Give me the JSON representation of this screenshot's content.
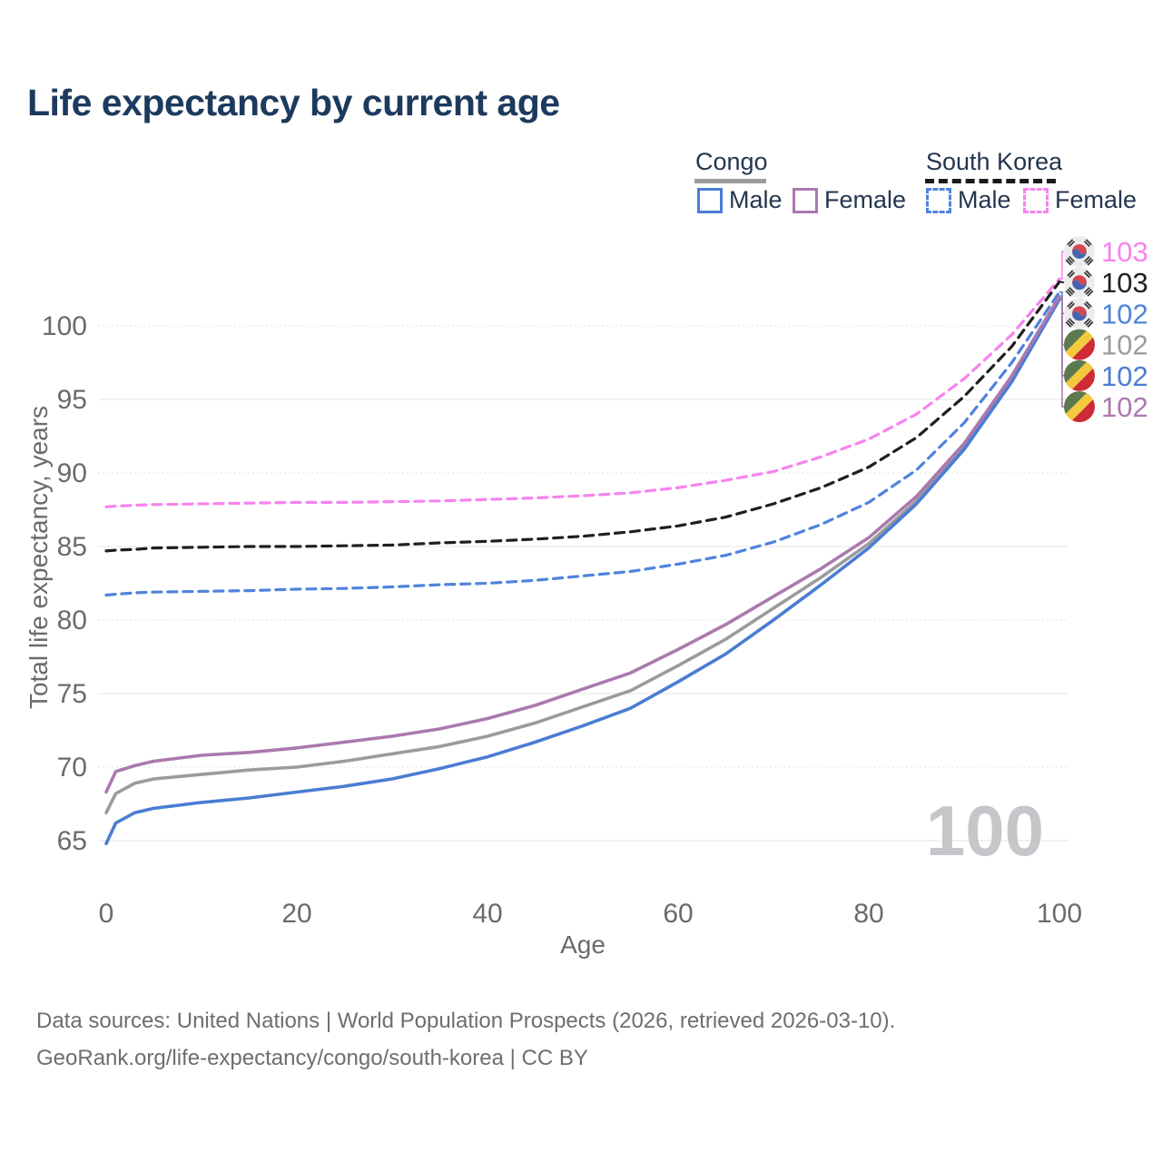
{
  "title": "Life expectancy by current age",
  "watermark": "100",
  "legend": {
    "groups": [
      {
        "name": "Congo",
        "line_style": "solid",
        "line_color": "#9b9b9b",
        "items": [
          {
            "label": "Male",
            "color": "#4a7dd3",
            "dashed": false
          },
          {
            "label": "Female",
            "color": "#ab79ae",
            "dashed": false
          }
        ]
      },
      {
        "name": "South Korea",
        "line_style": "dashed",
        "line_color": "#1a1a1a",
        "items": [
          {
            "label": "Male",
            "color": "#4f83dd",
            "dashed": true
          },
          {
            "label": "Female",
            "color": "#f783ee",
            "dashed": true
          }
        ]
      }
    ]
  },
  "footer": {
    "line1": "Data sources: United Nations | World Population Prospects (2026, retrieved 2026-03-10).",
    "line2": "GeoRank.org/life-expectancy/congo/south-korea | CC BY"
  },
  "chart_data": {
    "type": "line",
    "title": "Life expectancy by current age",
    "xlabel": "Age",
    "ylabel": "Total life expectancy, years",
    "xlim": [
      0,
      100
    ],
    "ylim": [
      63,
      104
    ],
    "xticks": [
      0,
      20,
      40,
      60,
      80,
      100
    ],
    "yticks": [
      65,
      70,
      75,
      80,
      85,
      90,
      95,
      100
    ],
    "grid": "horizontal-only",
    "legend_position": "top-right",
    "x": [
      0,
      1,
      3,
      5,
      10,
      15,
      20,
      25,
      30,
      35,
      40,
      45,
      50,
      55,
      60,
      65,
      70,
      75,
      80,
      85,
      90,
      95,
      100
    ],
    "series": [
      {
        "id": "sk_female",
        "name": "South Korea Female",
        "country": "South Korea",
        "sex": "Female",
        "color": "#f783ee",
        "dashed": true,
        "flag": "kr",
        "end_label": "103",
        "values": [
          87.7,
          87.75,
          87.8,
          87.85,
          87.9,
          87.95,
          88.0,
          88.0,
          88.05,
          88.1,
          88.2,
          88.3,
          88.45,
          88.65,
          89.0,
          89.5,
          90.1,
          91.1,
          92.3,
          94.0,
          96.4,
          99.4,
          103.2
        ]
      },
      {
        "id": "sk_total",
        "name": "South Korea Both sexes",
        "country": "South Korea",
        "sex": "Both",
        "color": "#1f1f1f",
        "dashed": true,
        "flag": "kr",
        "end_label": "103",
        "values": [
          84.7,
          84.75,
          84.8,
          84.9,
          84.95,
          85.0,
          85.0,
          85.05,
          85.1,
          85.25,
          85.35,
          85.5,
          85.7,
          86.0,
          86.4,
          87.0,
          87.9,
          89.0,
          90.4,
          92.4,
          95.2,
          98.6,
          103.0
        ]
      },
      {
        "id": "sk_male",
        "name": "South Korea Male",
        "country": "South Korea",
        "sex": "Male",
        "color": "#4f83dd",
        "dashed": true,
        "flag": "kr",
        "end_label": "102",
        "values": [
          81.7,
          81.75,
          81.85,
          81.9,
          81.95,
          82.0,
          82.1,
          82.15,
          82.25,
          82.4,
          82.5,
          82.7,
          83.0,
          83.3,
          83.8,
          84.4,
          85.3,
          86.5,
          88.0,
          90.2,
          93.4,
          97.5,
          102.3
        ]
      },
      {
        "id": "congo_total",
        "name": "Congo Both sexes",
        "country": "Congo",
        "sex": "Both",
        "color": "#9b9b9b",
        "dashed": false,
        "flag": "cg",
        "end_label": "102",
        "values": [
          66.9,
          68.2,
          68.9,
          69.2,
          69.5,
          69.8,
          70.0,
          70.4,
          70.9,
          71.4,
          72.1,
          73.0,
          74.1,
          75.2,
          76.9,
          78.7,
          80.8,
          82.9,
          85.2,
          88.1,
          91.8,
          96.4,
          101.9
        ]
      },
      {
        "id": "congo_male",
        "name": "Congo Male",
        "country": "Congo",
        "sex": "Male",
        "color": "#4a7dd3",
        "dashed": false,
        "flag": "cg",
        "end_label": "102",
        "values": [
          64.8,
          66.2,
          66.9,
          67.2,
          67.6,
          67.9,
          68.3,
          68.7,
          69.2,
          69.9,
          70.7,
          71.7,
          72.8,
          74.0,
          75.8,
          77.7,
          80.0,
          82.4,
          84.9,
          87.9,
          91.6,
          96.2,
          101.8
        ]
      },
      {
        "id": "congo_female",
        "name": "Congo Female",
        "country": "Congo",
        "sex": "Female",
        "color": "#ab79ae",
        "dashed": false,
        "flag": "cg",
        "end_label": "102",
        "values": [
          68.3,
          69.7,
          70.1,
          70.4,
          70.8,
          71.0,
          71.3,
          71.7,
          72.1,
          72.6,
          73.3,
          74.2,
          75.3,
          76.4,
          78.0,
          79.7,
          81.6,
          83.5,
          85.6,
          88.4,
          92.0,
          96.6,
          102.0
        ]
      }
    ],
    "end_label_order": [
      "sk_female",
      "sk_total",
      "sk_male",
      "congo_total",
      "congo_male",
      "congo_female"
    ],
    "flag_colors": {
      "kr": {
        "bg": "#ececec",
        "red": "#d64550",
        "blue": "#4464b0",
        "black": "#333333"
      },
      "cg": {
        "green": "#5c7a4e",
        "yellow": "#f3ca3e",
        "red": "#ce2b37"
      }
    },
    "axis_color": "#6b6b6b",
    "grid_color": "#e9e9e9",
    "watermark_color": "#c6c6ca"
  }
}
